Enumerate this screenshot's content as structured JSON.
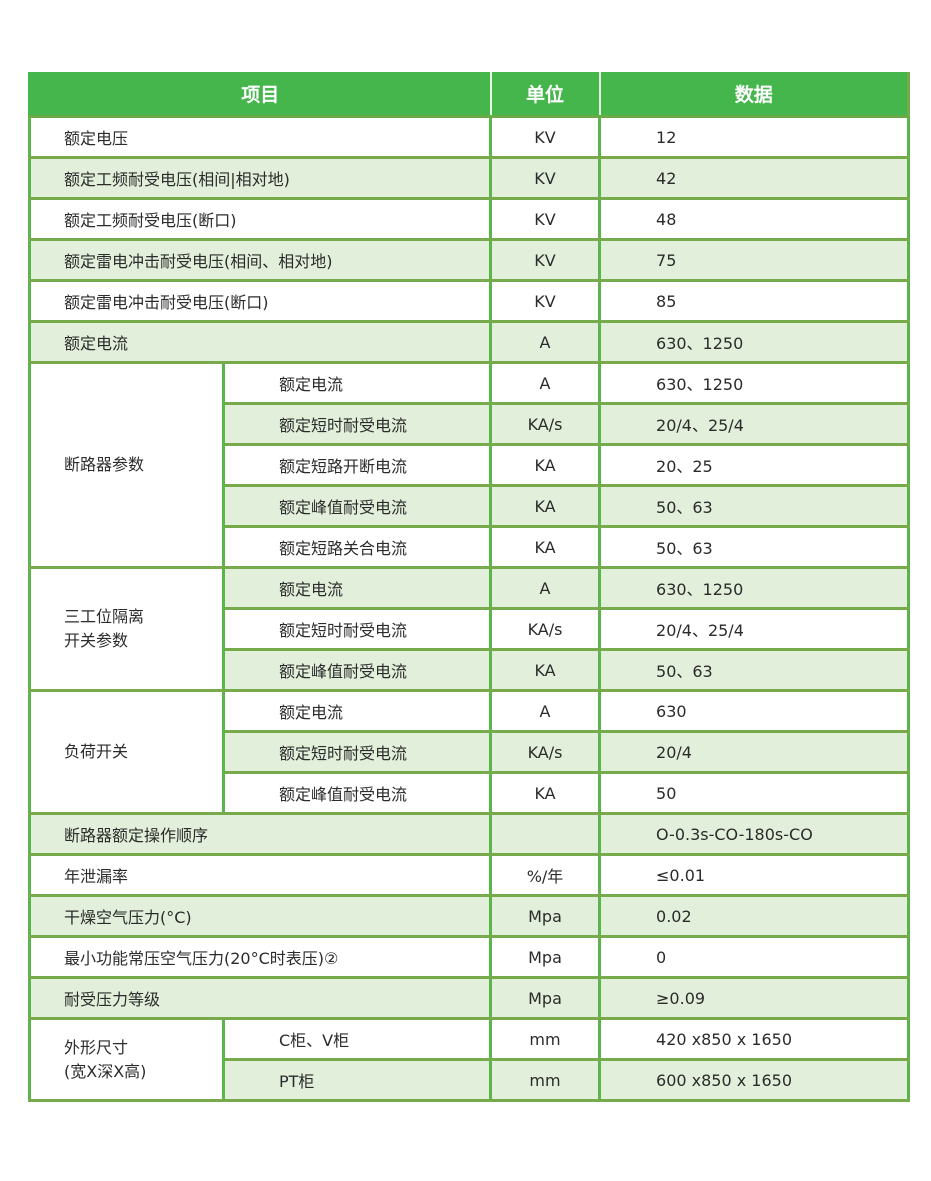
{
  "header": {
    "item": "项目",
    "unit": "单位",
    "value": "数据"
  },
  "colors": {
    "header_bg": "#45b64b",
    "alt_row_bg": "#e2efdb",
    "border": "#5cb44c"
  },
  "rows": [
    {
      "item": "额定电压",
      "unit": "KV",
      "value": "12"
    },
    {
      "item": "额定工频耐受电压(相间|相对地)",
      "unit": "KV",
      "value": "42"
    },
    {
      "item": "额定工频耐受电压(断口)",
      "unit": "KV",
      "value": "48"
    },
    {
      "item": "额定雷电冲击耐受电压(相间、相对地)",
      "unit": "KV",
      "value": "75"
    },
    {
      "item": "额定雷电冲击耐受电压(断口)",
      "unit": "KV",
      "value": "85"
    },
    {
      "item": "额定电流",
      "unit": "A",
      "value": "630、1250"
    },
    {
      "group": "断路器参数",
      "subs": [
        {
          "item": "额定电流",
          "unit": "A",
          "value": "630、1250"
        },
        {
          "item": "额定短时耐受电流",
          "unit": "KA/s",
          "value": "20/4、25/4"
        },
        {
          "item": "额定短路开断电流",
          "unit": "KA",
          "value": "20、25"
        },
        {
          "item": "额定峰值耐受电流",
          "unit": "KA",
          "value": "50、63"
        },
        {
          "item": "额定短路关合电流",
          "unit": "KA",
          "value": "50、63"
        }
      ]
    },
    {
      "group": "三工位隔离\n开关参数",
      "subs": [
        {
          "item": "额定电流",
          "unit": "A",
          "value": "630、1250"
        },
        {
          "item": "额定短时耐受电流",
          "unit": "KA/s",
          "value": "20/4、25/4"
        },
        {
          "item": "额定峰值耐受电流",
          "unit": "KA",
          "value": "50、63"
        }
      ]
    },
    {
      "group": "负荷开关",
      "subs": [
        {
          "item": "额定电流",
          "unit": "A",
          "value": "630"
        },
        {
          "item": "额定短时耐受电流",
          "unit": "KA/s",
          "value": "20/4"
        },
        {
          "item": "额定峰值耐受电流",
          "unit": "KA",
          "value": "50"
        }
      ]
    },
    {
      "item": "断路器额定操作顺序",
      "unit": "",
      "value": "O-0.3s-CO-180s-CO"
    },
    {
      "item": "年泄漏率",
      "unit": "%/年",
      "value": "≤0.01"
    },
    {
      "item": "干燥空气压力(°C)",
      "unit": "Mpa",
      "value": "0.02"
    },
    {
      "item": "最小功能常压空气压力(20°C时表压)②",
      "unit": "Mpa",
      "value": "0"
    },
    {
      "item": "耐受压力等级",
      "unit": "Mpa",
      "value": "≥0.09"
    },
    {
      "group": "外形尺寸\n(宽X深X高)",
      "subs": [
        {
          "item": "C柜、V柜",
          "unit": "mm",
          "value": "420 x850 x 1650"
        },
        {
          "item": "PT柜",
          "unit": "mm",
          "value": "600 x850 x 1650"
        }
      ]
    }
  ]
}
